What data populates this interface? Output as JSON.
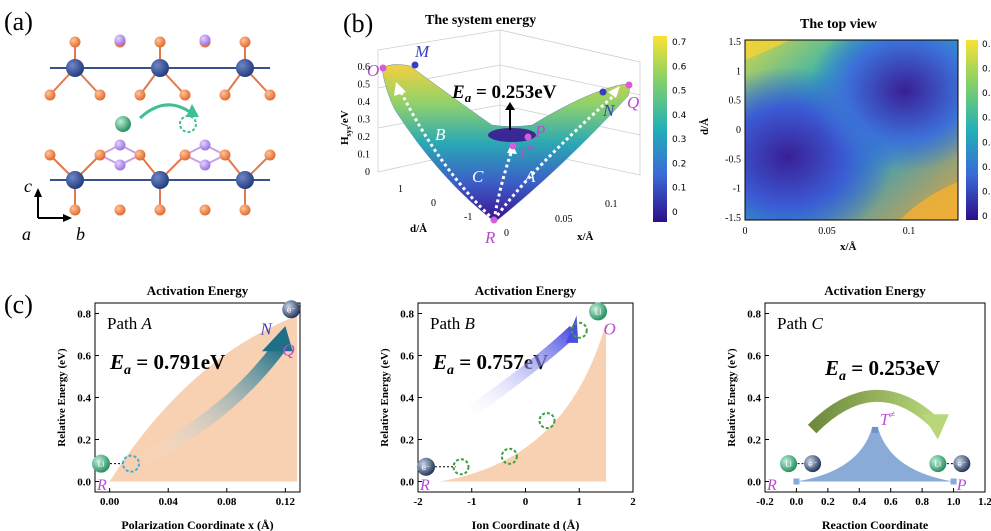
{
  "panel_labels": {
    "a": "(a)",
    "b": "(b)",
    "c": "(c)"
  },
  "crystal": {
    "axis_c": "c",
    "axis_a": "a",
    "axis_b": "b"
  },
  "energy3d": {
    "title": "The system energy",
    "zlabel_main": "H",
    "zlabel_sub": "sys",
    "zlabel_unit": "/eV",
    "zticks": [
      "0",
      "0.1",
      "0.2",
      "0.3",
      "0.4",
      "0.5",
      "0.6"
    ],
    "dlabel": "d/Å",
    "dticks": [
      "1",
      "0",
      "-1"
    ],
    "xlabel": "x/Å",
    "xticks": [
      "0",
      "0.05",
      "0.1"
    ],
    "ea_label": "E",
    "ea_sub": "a",
    "ea_value": " = 0.253eV",
    "points": {
      "O": "O",
      "M": "M",
      "B": "B",
      "P": "P",
      "T": "T",
      "T_sup": "≠",
      "C": "C",
      "A": "A",
      "R": "R",
      "N": "N",
      "Q": "Q"
    },
    "colorbar_ticks": [
      "0.7",
      "0.6",
      "0.5",
      "0.4",
      "0.3",
      "0.2",
      "0.1",
      "0"
    ]
  },
  "topview": {
    "title": "The top view",
    "ylabel": "d/Å",
    "yticks": [
      "1.5",
      "1",
      "0.5",
      "0",
      "-0.5",
      "-1",
      "-1.5"
    ],
    "xlabel": "x/Å",
    "xticks": [
      "0",
      "0.05",
      "0.1"
    ],
    "colorbar_ticks": [
      "0.",
      "0.",
      "0.",
      "0.",
      "0.",
      "0.",
      "0.",
      "0"
    ]
  },
  "paths": [
    {
      "title": "Activation Energy",
      "path_word": "Path ",
      "path_letter": "A",
      "ea_label": "E",
      "ea_sub": "a",
      "ea_value": " = 0.791eV",
      "ylabel": "Relative Energy (eV)",
      "yticks": [
        "0.0",
        "0.2",
        "0.4",
        "0.6",
        "0.8"
      ],
      "xlabel": "Polarization Coordinate x (Å)",
      "xticks": [
        "0.00",
        "0.04",
        "0.08",
        "0.12"
      ],
      "start": "R",
      "end_labels": [
        "N",
        "Q"
      ],
      "ion": "Li",
      "electron": "e⁻"
    },
    {
      "title": "Activation Energy",
      "path_word": "Path ",
      "path_letter": "B",
      "ea_label": "E",
      "ea_sub": "a",
      "ea_value": " = 0.757eV",
      "ylabel": "Relative Energy (eV)",
      "yticks": [
        "0.0",
        "0.2",
        "0.4",
        "0.6",
        "0.8"
      ],
      "xlabel": "Ion Coordinate d (Å)",
      "xticks": [
        "-2",
        "-1",
        "0",
        "1",
        "2"
      ],
      "start": "R",
      "end_labels": [
        "O"
      ],
      "ion": "Li",
      "electron": "e⁻"
    },
    {
      "title": "Activation Energy",
      "path_word": "Path ",
      "path_letter": "C",
      "ea_label": "E",
      "ea_sub": "a",
      "ea_value": " = 0.253eV",
      "ylabel": "Relative Energy (eV)",
      "yticks": [
        "0.0",
        "0.2",
        "0.4",
        "0.6",
        "0.8"
      ],
      "xlabel": "Reaction Coordinate",
      "xticks": [
        "-0.2",
        "0.0",
        "0.2",
        "0.4",
        "0.6",
        "0.8",
        "1.0",
        "1.2"
      ],
      "start": "R",
      "end_labels": [
        "P"
      ],
      "peak_label": "T",
      "peak_sup": "≠",
      "ion": "Li",
      "electron": "e⁻"
    }
  ]
}
